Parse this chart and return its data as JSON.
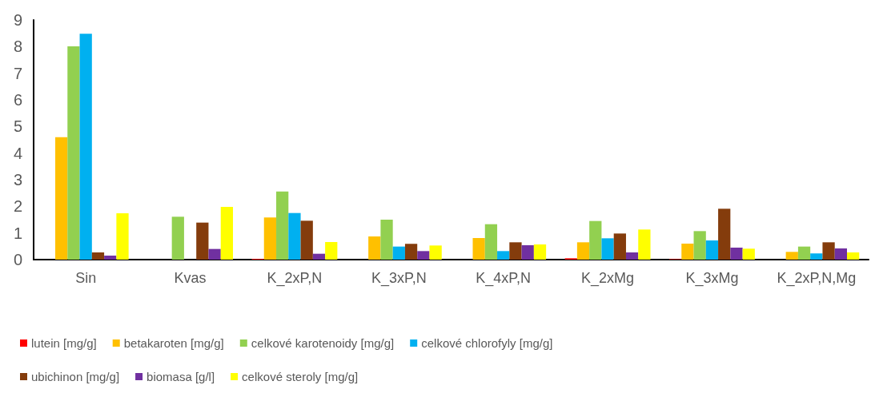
{
  "chart_data": {
    "type": "bar",
    "categories": [
      "Sin",
      "Kvas",
      "K_2xP,N",
      "K_3xP,N",
      "K_4xP,N",
      "K_2xMg",
      "K_3xMg",
      "K_2xP,N,Mg"
    ],
    "series": [
      {
        "name": "lutein [mg/g]",
        "color": "#ff0000",
        "values": [
          0,
          0,
          0.03,
          0,
          0,
          0.05,
          0.02,
          0
        ]
      },
      {
        "name": "betakaroten [mg/g]",
        "color": "#ffc000",
        "values": [
          4.6,
          0,
          1.58,
          0.87,
          0.81,
          0.65,
          0.6,
          0.29
        ]
      },
      {
        "name": "celkové karotenoidy [mg/g]",
        "color": "#92d050",
        "values": [
          8.01,
          1.61,
          2.56,
          1.5,
          1.33,
          1.45,
          1.07,
          0.49
        ]
      },
      {
        "name": "celkové chlorofyly [mg/g]",
        "color": "#00b0f0",
        "values": [
          8.48,
          0,
          1.75,
          0.49,
          0.32,
          0.8,
          0.72,
          0.23
        ]
      },
      {
        "name": "ubichinon [mg/g]",
        "color": "#843c0c",
        "values": [
          0.27,
          1.39,
          1.46,
          0.59,
          0.65,
          0.98,
          1.91,
          0.65
        ]
      },
      {
        "name": "biomasa [g/l]",
        "color": "#7030a0",
        "values": [
          0.15,
          0.4,
          0.22,
          0.32,
          0.54,
          0.27,
          0.45,
          0.42
        ]
      },
      {
        "name": "celkové steroly [mg/g]",
        "color": "#ffff00",
        "values": [
          1.74,
          1.98,
          0.66,
          0.53,
          0.57,
          1.13,
          0.41,
          0.27
        ]
      }
    ],
    "ylim": [
      0,
      9
    ],
    "yticks": [
      0,
      1,
      2,
      3,
      4,
      5,
      6,
      7,
      8,
      9
    ],
    "grid": false,
    "legend": "bottom"
  }
}
